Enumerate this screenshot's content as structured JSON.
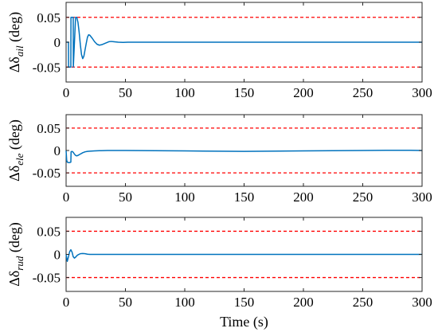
{
  "chart_data": [
    {
      "type": "line",
      "ylabel": {
        "prefix": "Δδ",
        "sub": "ail",
        "unit": "(deg)"
      },
      "xlim": [
        0,
        300
      ],
      "ylim": [
        -0.08,
        0.08
      ],
      "xticks": [
        0,
        50,
        100,
        150,
        200,
        250,
        300
      ],
      "yticks": [
        0.05,
        0,
        -0.05
      ],
      "ytick_labels": [
        "0.05",
        "0",
        "-0.05"
      ],
      "limit_lines": [
        0.05,
        -0.05
      ],
      "series": [
        {
          "color": "#0072BD",
          "x": [
            0,
            2,
            2.1,
            4,
            4.1,
            6,
            6.1,
            8,
            9,
            10,
            11,
            12,
            13,
            14,
            15,
            16,
            17,
            18,
            19,
            20,
            22,
            24,
            26,
            28,
            30,
            32,
            34,
            36,
            38,
            40,
            44,
            48,
            52,
            60,
            80,
            100,
            150,
            200,
            250,
            300
          ],
          "y": [
            0,
            0,
            -0.05,
            -0.05,
            0.05,
            0.05,
            -0.05,
            0.05,
            0.05,
            0.04,
            0.02,
            -0.005,
            -0.025,
            -0.033,
            -0.028,
            -0.015,
            -0.002,
            0.01,
            0.015,
            0.014,
            0.008,
            0.001,
            -0.004,
            -0.006,
            -0.005,
            -0.003,
            -0.001,
            0.001,
            0.0015,
            0.001,
            0,
            -0.0005,
            0,
            0,
            0,
            0,
            0,
            0,
            0,
            0
          ]
        }
      ]
    },
    {
      "type": "line",
      "ylabel": {
        "prefix": "Δδ",
        "sub": "ele",
        "unit": "(deg)"
      },
      "xlim": [
        0,
        300
      ],
      "ylim": [
        -0.08,
        0.08
      ],
      "xticks": [
        0,
        50,
        100,
        150,
        200,
        250,
        300
      ],
      "yticks": [
        0.05,
        0,
        -0.05
      ],
      "ytick_labels": [
        "0.05",
        "0",
        "-0.05"
      ],
      "limit_lines": [
        0.05,
        -0.05
      ],
      "series": [
        {
          "color": "#0072BD",
          "x": [
            0,
            0.5,
            1,
            2,
            3,
            4,
            4.2,
            5,
            6,
            7,
            8,
            9,
            10,
            12,
            14,
            16,
            18,
            20,
            24,
            28,
            35,
            50,
            100,
            150,
            200,
            250,
            270,
            290,
            300
          ],
          "y": [
            0,
            -0.022,
            -0.026,
            -0.027,
            -0.027,
            -0.026,
            -0.003,
            -0.002,
            -0.004,
            -0.008,
            -0.011,
            -0.012,
            -0.011,
            -0.008,
            -0.005,
            -0.003,
            -0.002,
            -0.0015,
            -0.001,
            -0.0005,
            0,
            0,
            -0.001,
            -0.002,
            -0.001,
            0,
            0.0005,
            0.0005,
            0
          ]
        }
      ]
    },
    {
      "type": "line",
      "ylabel": {
        "prefix": "Δδ",
        "sub": "rud",
        "unit": "(deg)"
      },
      "xlim": [
        0,
        300
      ],
      "ylim": [
        -0.08,
        0.08
      ],
      "xticks": [
        0,
        50,
        100,
        150,
        200,
        250,
        300
      ],
      "xtick_labels": [
        "0",
        "50",
        "100",
        "150",
        "200",
        "250",
        "300"
      ],
      "yticks": [
        0.05,
        0,
        -0.05
      ],
      "ytick_labels": [
        "0.05",
        "0",
        "-0.05"
      ],
      "limit_lines": [
        0.05,
        -0.05
      ],
      "xlabel": "Time (s)",
      "series": [
        {
          "color": "#0072BD",
          "x": [
            0,
            1,
            2,
            3,
            4,
            5,
            6,
            7,
            8,
            9,
            10,
            12,
            14,
            16,
            18,
            20,
            25,
            30,
            50,
            100,
            150,
            200,
            250,
            300
          ],
          "y": [
            0,
            -0.015,
            -0.005,
            0.006,
            0.01,
            0.005,
            -0.005,
            -0.008,
            -0.006,
            -0.003,
            -0.001,
            0.0015,
            0.002,
            0.0015,
            0.0005,
            0,
            0,
            0,
            0,
            0,
            0,
            0,
            0,
            0
          ]
        }
      ]
    }
  ]
}
